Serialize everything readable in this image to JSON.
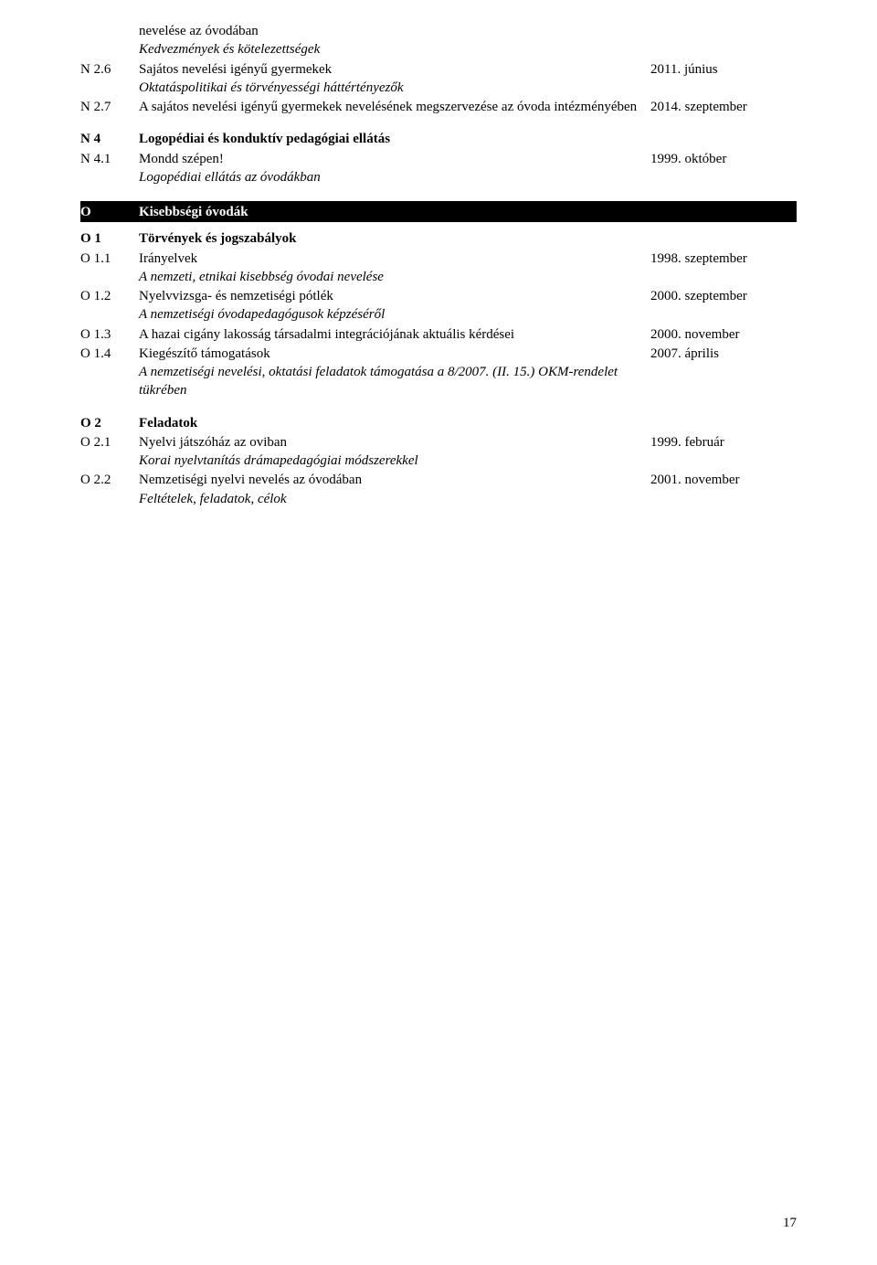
{
  "entries": [
    {
      "code": "",
      "title": "nevelése az óvodában",
      "date": "",
      "subtitle": "Kedvezmények és kötelezettségek",
      "bold": false
    },
    {
      "code": "N 2.6",
      "title": "Sajátos nevelési igényű gyermekek",
      "date": "2011. június",
      "subtitle": "Oktatáspolitikai és törvényességi háttértényezők",
      "bold": false
    },
    {
      "code": "N 2.7",
      "title": "A sajátos nevelési igényű gyermekek nevelésének megszervezése az óvoda intézményében",
      "date": "2014. szeptember",
      "subtitle": "",
      "bold": false
    }
  ],
  "n4_header": {
    "code": "N 4",
    "title": "Logopédiai és konduktív pedagógiai ellátás"
  },
  "n4_items": [
    {
      "code": "N 4.1",
      "title": "Mondd szépen!",
      "date": "1999. október",
      "subtitle": "Logopédiai ellátás az óvodákban",
      "bold": false
    }
  ],
  "section_o": {
    "code": "O",
    "title": "Kisebbségi óvodák"
  },
  "o1_header": {
    "code": "O 1",
    "title": "Törvények és jogszabályok"
  },
  "o1_items": [
    {
      "code": "O 1.1",
      "title": "Irányelvek",
      "date": "1998. szeptember",
      "subtitle": "A nemzeti, etnikai kisebbség óvodai nevelése"
    },
    {
      "code": "O 1.2",
      "title": "Nyelvvizsga- és nemzetiségi pótlék",
      "date": "2000. szeptember",
      "subtitle": "A nemzetiségi óvodapedagógusok képzéséről"
    },
    {
      "code": "O 1.3",
      "title": "A hazai cigány lakosság társadalmi integrációjának aktuális kérdései",
      "date": "2000. november",
      "subtitle": ""
    },
    {
      "code": "O 1.4",
      "title": "Kiegészítő támogatások",
      "date": "2007. április",
      "subtitle": "A nemzetiségi nevelési, oktatási feladatok támogatása a 8/2007. (II. 15.) OKM-rendelet tükrében"
    }
  ],
  "o2_header": {
    "code": "O 2",
    "title": "Feladatok"
  },
  "o2_items": [
    {
      "code": "O 2.1",
      "title": "Nyelvi játszóház az oviban",
      "date": "1999. február",
      "subtitle": "Korai nyelvtanítás drámapedagógiai módszerekkel"
    },
    {
      "code": "O 2.2",
      "title": "Nemzetiségi nyelvi nevelés az óvodában",
      "date": "2001. november",
      "subtitle": "Feltételek, feladatok, célok"
    }
  ],
  "page_number": "17"
}
